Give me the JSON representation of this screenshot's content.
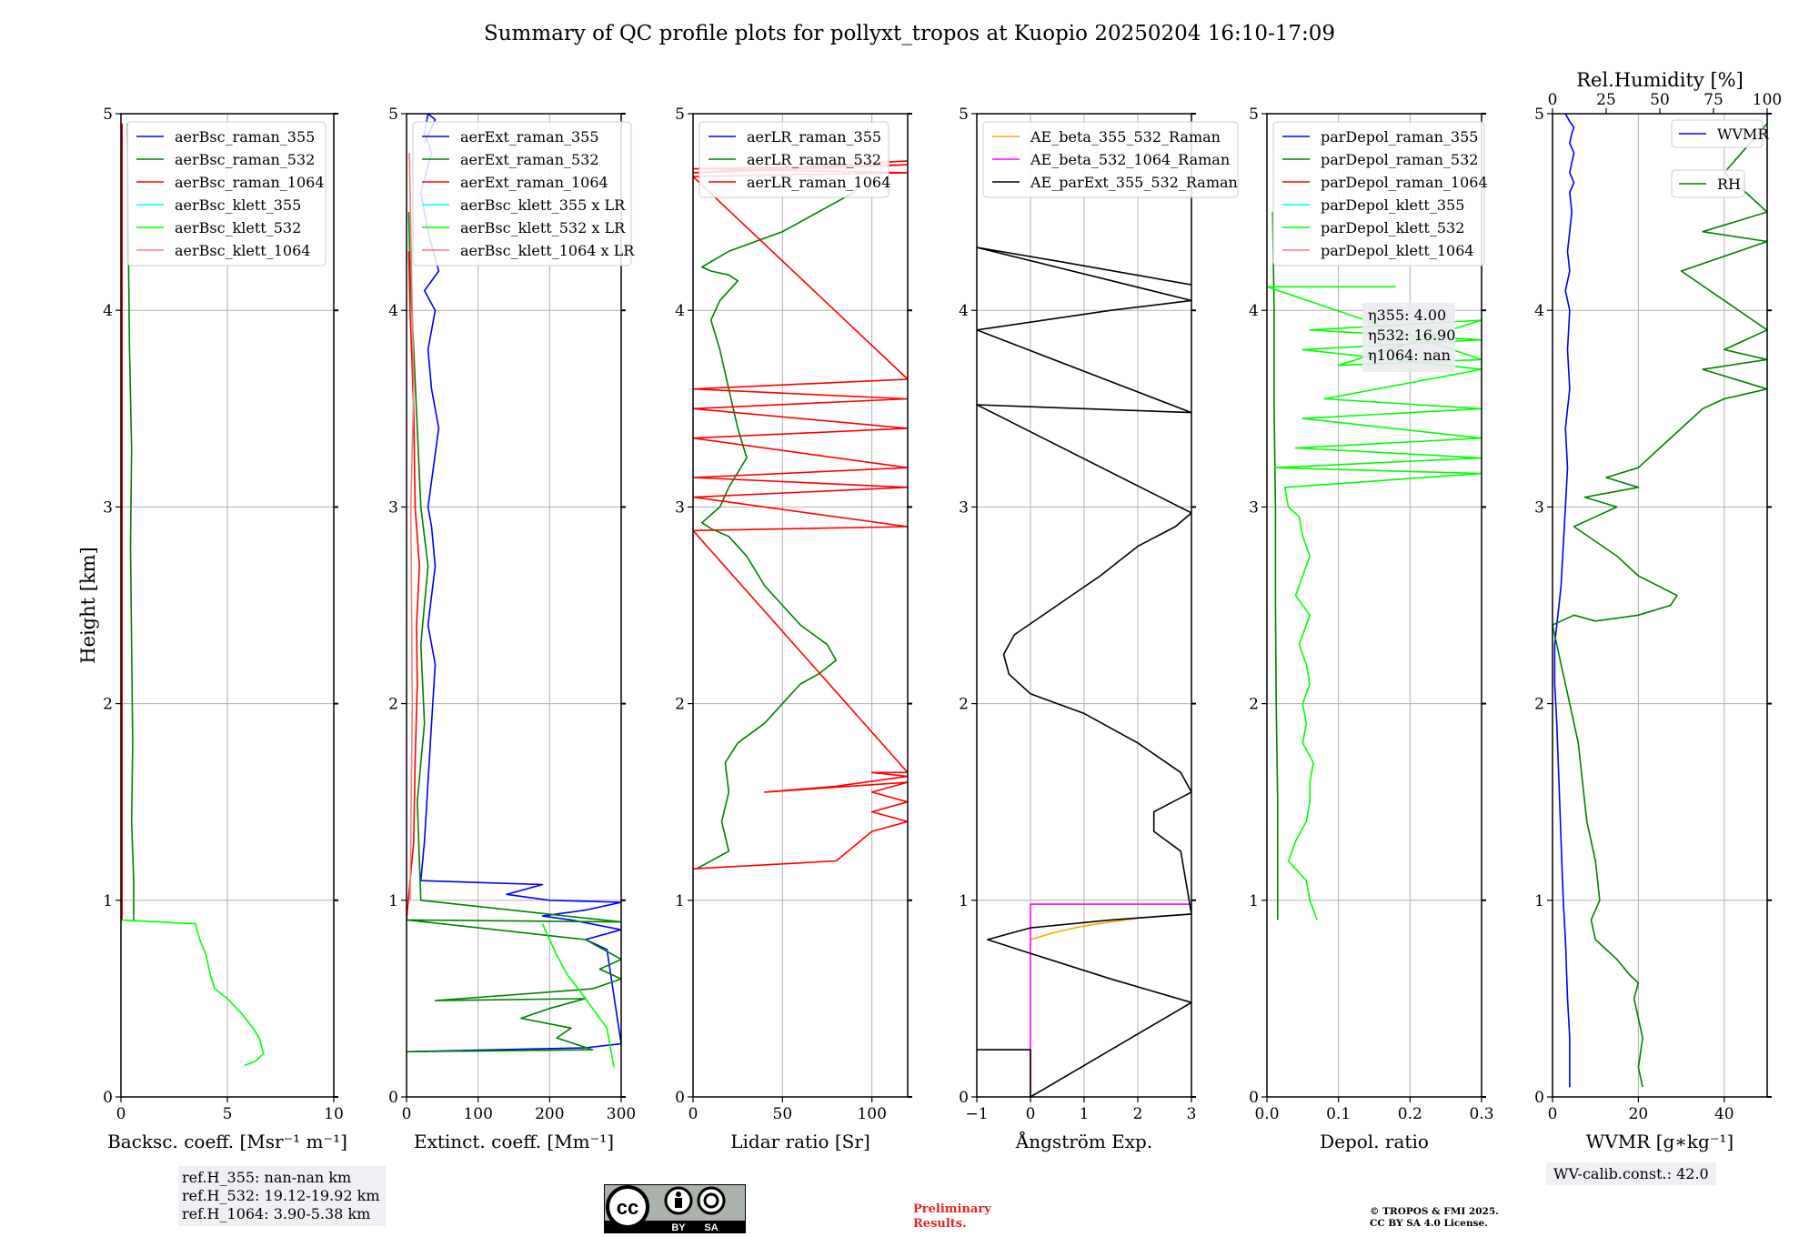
{
  "figure_title": "Summary of QC profile plots for pollyxt_tropos at Kuopio 20250204 16:10-17:09",
  "footer": {
    "ref_heights": [
      "ref.H_355: nan-nan km",
      "ref.H_532: 19.12-19.92 km",
      "ref.H_1064: 3.90-5.38 km"
    ],
    "wv_calib": "WV-calib.const.: 42.0",
    "license_badge": {
      "by": "BY",
      "sa": "SA"
    },
    "preliminary": [
      "Preliminary",
      "Results."
    ],
    "copyright": [
      "© TROPOS & FMI 2025.",
      "CC BY SA 4.0 License."
    ]
  },
  "colors": {
    "blue": "#0000ff",
    "green": "#008000",
    "red": "#ff0000",
    "cyan": "#00ffff",
    "lime": "#00ff00",
    "salmon": "#f08080",
    "orange": "#ffa500",
    "magenta": "#ff00ff",
    "black": "#000000",
    "grid": "#b0b0b0"
  },
  "chart_data": [
    {
      "type": "line",
      "ylabel": "Height [km]",
      "xlabel": "Backsc. coeff. [Msr⁻¹ m⁻¹]",
      "xlim": [
        0,
        10
      ],
      "ylim": [
        0,
        5
      ],
      "xticks": [
        0,
        5,
        10
      ],
      "yticks": [
        0,
        1,
        2,
        3,
        4,
        5
      ],
      "grid": true,
      "legend": "top-left",
      "series": [
        {
          "name": "aerBsc_raman_355",
          "color": "#0000ff",
          "x": [],
          "y": []
        },
        {
          "name": "aerBsc_raman_532",
          "color": "#008000",
          "x": [
            0.6,
            0.6,
            0.5,
            0.55,
            0.5,
            0.45,
            0.5,
            0.4,
            0.35,
            0.3
          ],
          "y": [
            0.9,
            1.1,
            1.4,
            1.8,
            2.3,
            2.8,
            3.3,
            3.8,
            4.3,
            4.95
          ]
        },
        {
          "name": "aerBsc_raman_1064",
          "color": "#ff0000",
          "x": [
            0.05,
            0.05,
            0.05,
            0.05
          ],
          "y": [
            0.9,
            2.0,
            3.5,
            4.95
          ]
        },
        {
          "name": "aerBsc_klett_355",
          "color": "#00ffff",
          "x": [],
          "y": []
        },
        {
          "name": "aerBsc_klett_532",
          "color": "#00ff00",
          "x": [
            5.8,
            6.3,
            6.7,
            6.5,
            6.2,
            5.7,
            5.0,
            4.4,
            4.2,
            4.0,
            3.7,
            3.5,
            0.0
          ],
          "y": [
            0.16,
            0.18,
            0.22,
            0.3,
            0.35,
            0.42,
            0.5,
            0.55,
            0.62,
            0.72,
            0.8,
            0.88,
            0.9
          ]
        },
        {
          "name": "aerBsc_klett_1064",
          "color": "#f08080",
          "x": [],
          "y": []
        }
      ]
    },
    {
      "type": "line",
      "xlabel": "Extinct. coeff. [Mm⁻¹]",
      "xlim": [
        0,
        300
      ],
      "ylim": [
        0,
        5
      ],
      "xticks": [
        0,
        100,
        200,
        300
      ],
      "yticks": [
        0,
        1,
        2,
        3,
        4,
        5
      ],
      "grid": true,
      "legend": "top-left",
      "series": [
        {
          "name": "aerExt_raman_355",
          "color": "#0000ff",
          "x": [
            0,
            250,
            300,
            280,
            250,
            300,
            230,
            190,
            250,
            300,
            200,
            140,
            190,
            20,
            25,
            30,
            35,
            40,
            30,
            40,
            35,
            30,
            45,
            35,
            30,
            40,
            25,
            45,
            30,
            20,
            35,
            25,
            30,
            40,
            25
          ],
          "y": [
            0.23,
            0.25,
            0.27,
            0.75,
            0.8,
            0.85,
            0.9,
            0.92,
            0.95,
            0.99,
            1.0,
            1.03,
            1.08,
            1.1,
            1.3,
            1.6,
            1.9,
            2.2,
            2.4,
            2.7,
            2.9,
            3.0,
            3.4,
            3.6,
            3.8,
            4.0,
            4.1,
            4.2,
            4.4,
            4.6,
            4.8,
            4.9,
            5.0,
            4.97,
            4.85
          ]
        },
        {
          "name": "aerExt_raman_532",
          "color": "#008000",
          "x": [
            0,
            260,
            210,
            230,
            160,
            200,
            250,
            40,
            260,
            300,
            270,
            300,
            250,
            0,
            300,
            20,
            15,
            25,
            20,
            30,
            20,
            15,
            10,
            5,
            3
          ],
          "y": [
            0.23,
            0.24,
            0.3,
            0.35,
            0.4,
            0.45,
            0.5,
            0.49,
            0.55,
            0.6,
            0.65,
            0.7,
            0.8,
            0.9,
            0.89,
            1.0,
            1.5,
            1.9,
            2.3,
            2.7,
            3.0,
            3.4,
            3.8,
            4.2,
            4.5
          ]
        },
        {
          "name": "aerExt_raman_1064",
          "color": "#ff0000",
          "x": [
            0,
            10,
            12,
            15,
            14,
            18,
            12,
            10,
            5,
            3
          ],
          "y": [
            0.9,
            1.3,
            1.7,
            2.1,
            2.4,
            2.7,
            3.0,
            3.5,
            4.0,
            4.3
          ]
        },
        {
          "name": "aerBsc_klett_355 x LR",
          "color": "#00ffff",
          "x": [],
          "y": []
        },
        {
          "name": "aerBsc_klett_532 x LR",
          "color": "#00ff00",
          "x": [
            290,
            280,
            260,
            240,
            225,
            210,
            200,
            190
          ],
          "y": [
            0.15,
            0.35,
            0.45,
            0.55,
            0.62,
            0.72,
            0.8,
            0.88
          ]
        },
        {
          "name": "aerBsc_klett_1064 x LR",
          "color": "#f08080",
          "x": [
            5,
            8,
            6,
            10,
            7,
            4
          ],
          "y": [
            1.0,
            2.0,
            3.0,
            3.6,
            4.2,
            4.8
          ]
        }
      ]
    },
    {
      "type": "line",
      "xlabel": "Lidar ratio [Sr]",
      "xlim": [
        0,
        120
      ],
      "ylim": [
        0,
        5
      ],
      "xticks": [
        0,
        50,
        100
      ],
      "yticks": [
        0,
        1,
        2,
        3,
        4,
        5
      ],
      "grid": true,
      "legend": "top-left",
      "series": [
        {
          "name": "aerLR_raman_355",
          "color": "#0000ff",
          "x": [],
          "y": []
        },
        {
          "name": "aerLR_raman_532",
          "color": "#008000",
          "x": [
            2,
            20,
            16,
            20,
            18,
            25,
            40,
            50,
            60,
            70,
            80,
            75,
            60,
            50,
            40,
            30,
            20,
            10,
            5,
            15,
            20,
            30,
            25,
            20,
            15,
            10,
            15,
            25,
            20,
            10,
            5,
            20,
            35,
            50,
            60,
            70,
            80,
            90,
            95
          ],
          "y": [
            1.16,
            1.25,
            1.4,
            1.55,
            1.7,
            1.8,
            1.9,
            2.0,
            2.1,
            2.15,
            2.22,
            2.3,
            2.4,
            2.5,
            2.6,
            2.75,
            2.85,
            2.89,
            2.92,
            3.0,
            3.1,
            3.25,
            3.4,
            3.6,
            3.8,
            3.95,
            4.05,
            4.15,
            4.18,
            4.2,
            4.22,
            4.3,
            4.35,
            4.4,
            4.45,
            4.5,
            4.55,
            4.6,
            4.65
          ]
        },
        {
          "name": "aerLR_raman_1064",
          "color": "#ff0000",
          "x": [
            0,
            80,
            100,
            120,
            100,
            120,
            100,
            120,
            40,
            80,
            120,
            100,
            120,
            0,
            120,
            0,
            120,
            0,
            120,
            0,
            120,
            0,
            120,
            0,
            120,
            0,
            120,
            0,
            120,
            0,
            120
          ],
          "y": [
            1.16,
            1.2,
            1.35,
            1.4,
            1.45,
            1.5,
            1.55,
            1.6,
            1.55,
            1.58,
            1.63,
            1.65,
            1.65,
            2.88,
            2.9,
            3.05,
            3.1,
            3.15,
            3.2,
            3.35,
            3.4,
            3.5,
            3.55,
            3.6,
            3.65,
            4.68,
            4.7,
            4.72,
            4.74,
            4.7,
            4.76
          ]
        }
      ]
    },
    {
      "type": "line",
      "xlabel": "Ångström Exp.",
      "xlim": [
        -1,
        3
      ],
      "ylim": [
        0,
        5
      ],
      "xticks": [
        -1,
        0,
        1,
        2,
        3
      ],
      "yticks": [
        0,
        1,
        2,
        3,
        4,
        5
      ],
      "grid": true,
      "legend": "top-left",
      "series": [
        {
          "name": "AE_beta_355_532_Raman",
          "color": "#ffa500",
          "x": [
            0.0,
            0.5,
            1.0,
            1.5,
            2.0,
            2.5,
            3.0
          ],
          "y": [
            0.8,
            0.84,
            0.87,
            0.89,
            0.91,
            0.92,
            0.93
          ]
        },
        {
          "name": "AE_beta_532_1064_Raman",
          "color": "#ff00ff",
          "x": [
            0.0,
            0.0,
            0.0,
            3.0
          ],
          "y": [
            0.0,
            0.8,
            0.98,
            0.98
          ]
        },
        {
          "name": "AE_parExt_355_532_Raman",
          "color": "#000000",
          "x": [
            -1.0,
            0.0,
            0.0,
            3.0,
            1.5,
            0.0,
            -0.8,
            0.0,
            1.5,
            3.0,
            2.8,
            2.3,
            2.3,
            3.0,
            2.8,
            2.0,
            1.0,
            0.0,
            -0.4,
            -0.5,
            -0.3,
            0.5,
            1.3,
            2.0,
            2.7,
            3.0,
            -1.0,
            3.0,
            -1.0,
            1.5,
            3.0,
            -1.0,
            0.5,
            3.0
          ],
          "y": [
            0.24,
            0.24,
            0.0,
            0.48,
            0.6,
            0.73,
            0.8,
            0.86,
            0.9,
            0.93,
            1.25,
            1.35,
            1.45,
            1.55,
            1.65,
            1.8,
            1.95,
            2.05,
            2.15,
            2.25,
            2.35,
            2.5,
            2.65,
            2.8,
            2.9,
            2.97,
            3.52,
            3.48,
            3.9,
            4.0,
            4.05,
            4.32,
            4.25,
            4.13
          ]
        }
      ]
    },
    {
      "type": "line",
      "xlabel": "Depol. ratio",
      "xlim": [
        0,
        0.3
      ],
      "ylim": [
        0,
        5
      ],
      "xticks": [
        0.0,
        0.1,
        0.2,
        0.3
      ],
      "yticks": [
        0,
        1,
        2,
        3,
        4,
        5
      ],
      "grid": true,
      "legend": "top-left",
      "annotation": [
        "η355: 4.00",
        "η532: 16.90",
        "η1064: nan"
      ],
      "series": [
        {
          "name": "parDepol_raman_355",
          "color": "#0000ff",
          "x": [],
          "y": []
        },
        {
          "name": "parDepol_raman_532",
          "color": "#008000",
          "x": [
            0.015,
            0.015,
            0.013,
            0.012,
            0.012,
            0.01,
            0.01,
            0.008
          ],
          "y": [
            0.9,
            1.5,
            2.0,
            2.5,
            3.0,
            3.5,
            4.0,
            4.5
          ]
        },
        {
          "name": "parDepol_raman_1064",
          "color": "#ff0000",
          "x": [],
          "y": []
        },
        {
          "name": "parDepol_klett_355",
          "color": "#00ffff",
          "x": [],
          "y": []
        },
        {
          "name": "parDepol_klett_532",
          "color": "#00ff00",
          "x": [
            0.07,
            0.06,
            0.055,
            0.03,
            0.04,
            0.055,
            0.06,
            0.06,
            0.065,
            0.05,
            0.055,
            0.05,
            0.06,
            0.055,
            0.045,
            0.06,
            0.04,
            0.05,
            0.06,
            0.05,
            0.045,
            0.03,
            0.025,
            0.3,
            0.01,
            0.3,
            0.04,
            0.3,
            0.05,
            0.3,
            0.08,
            0.3,
            0.05,
            0.3,
            0.06,
            0.3,
            0.1,
            0.3,
            0.0,
            0.18
          ],
          "y": [
            0.9,
            1.0,
            1.1,
            1.2,
            1.3,
            1.4,
            1.5,
            1.6,
            1.7,
            1.8,
            1.9,
            2.0,
            2.1,
            2.2,
            2.3,
            2.45,
            2.55,
            2.65,
            2.75,
            2.85,
            2.95,
            3.0,
            3.1,
            3.17,
            3.2,
            3.25,
            3.3,
            3.35,
            3.45,
            3.5,
            3.55,
            3.7,
            3.8,
            3.85,
            3.9,
            3.95,
            3.72,
            3.75,
            4.12,
            4.12
          ]
        },
        {
          "name": "parDepol_klett_1064",
          "color": "#f08080",
          "x": [],
          "y": []
        }
      ]
    },
    {
      "type": "line",
      "xlabel": "WVMR [g∗kg⁻¹]",
      "x2label": "Rel.Humidity [%]",
      "xlim": [
        0,
        50
      ],
      "x2lim": [
        0,
        100
      ],
      "ylim": [
        0,
        5
      ],
      "xticks": [
        0,
        20,
        40
      ],
      "x2ticks": [
        0,
        25,
        50,
        75,
        100
      ],
      "yticks": [
        0,
        1,
        2,
        3,
        4,
        5
      ],
      "grid": true,
      "legend": [
        "top-center",
        "upper-right"
      ],
      "series": [
        {
          "name": "WVMR",
          "color": "#0000ff",
          "axis": "bottom",
          "x": [
            4,
            4,
            3.5,
            3,
            2.5,
            2,
            1.5,
            1,
            0.5,
            0.5,
            1,
            1.5,
            2,
            2.5,
            3,
            3.5,
            3,
            4,
            3.5,
            4,
            3,
            4,
            3.5,
            4,
            4.5,
            4,
            5,
            4,
            4.5,
            5,
            4,
            4.5,
            5,
            4,
            3
          ],
          "y": [
            0.05,
            0.3,
            0.5,
            0.8,
            1.0,
            1.3,
            1.6,
            1.9,
            2.1,
            2.3,
            2.4,
            2.5,
            2.6,
            2.8,
            3.0,
            3.2,
            3.4,
            3.6,
            3.8,
            4.0,
            4.1,
            4.2,
            4.3,
            4.4,
            4.5,
            4.6,
            4.65,
            4.7,
            4.75,
            4.8,
            4.85,
            4.9,
            4.93,
            4.96,
            5.0
          ]
        },
        {
          "name": "RH",
          "color": "#008000",
          "axis": "top",
          "x": [
            42,
            40,
            42,
            38,
            40,
            36,
            30,
            20,
            18,
            22,
            20,
            16,
            14,
            12,
            10,
            8,
            6,
            4,
            2,
            0,
            10,
            20,
            40,
            55,
            58,
            40,
            30,
            10,
            20,
            30,
            15,
            40,
            25,
            40,
            50,
            60,
            70,
            80,
            100,
            70,
            100,
            80,
            100,
            60,
            100,
            70,
            100,
            80,
            100
          ],
          "y": [
            0.05,
            0.15,
            0.3,
            0.5,
            0.58,
            0.62,
            0.7,
            0.8,
            0.9,
            1.0,
            1.2,
            1.4,
            1.6,
            1.8,
            1.9,
            2.0,
            2.1,
            2.2,
            2.3,
            2.4,
            2.45,
            2.42,
            2.45,
            2.5,
            2.55,
            2.65,
            2.75,
            2.9,
            2.95,
            3.0,
            3.05,
            3.1,
            3.15,
            3.2,
            3.3,
            3.4,
            3.5,
            3.55,
            3.6,
            3.7,
            3.75,
            3.8,
            3.9,
            4.2,
            4.35,
            4.4,
            4.5,
            4.7,
            4.95
          ]
        }
      ]
    }
  ]
}
